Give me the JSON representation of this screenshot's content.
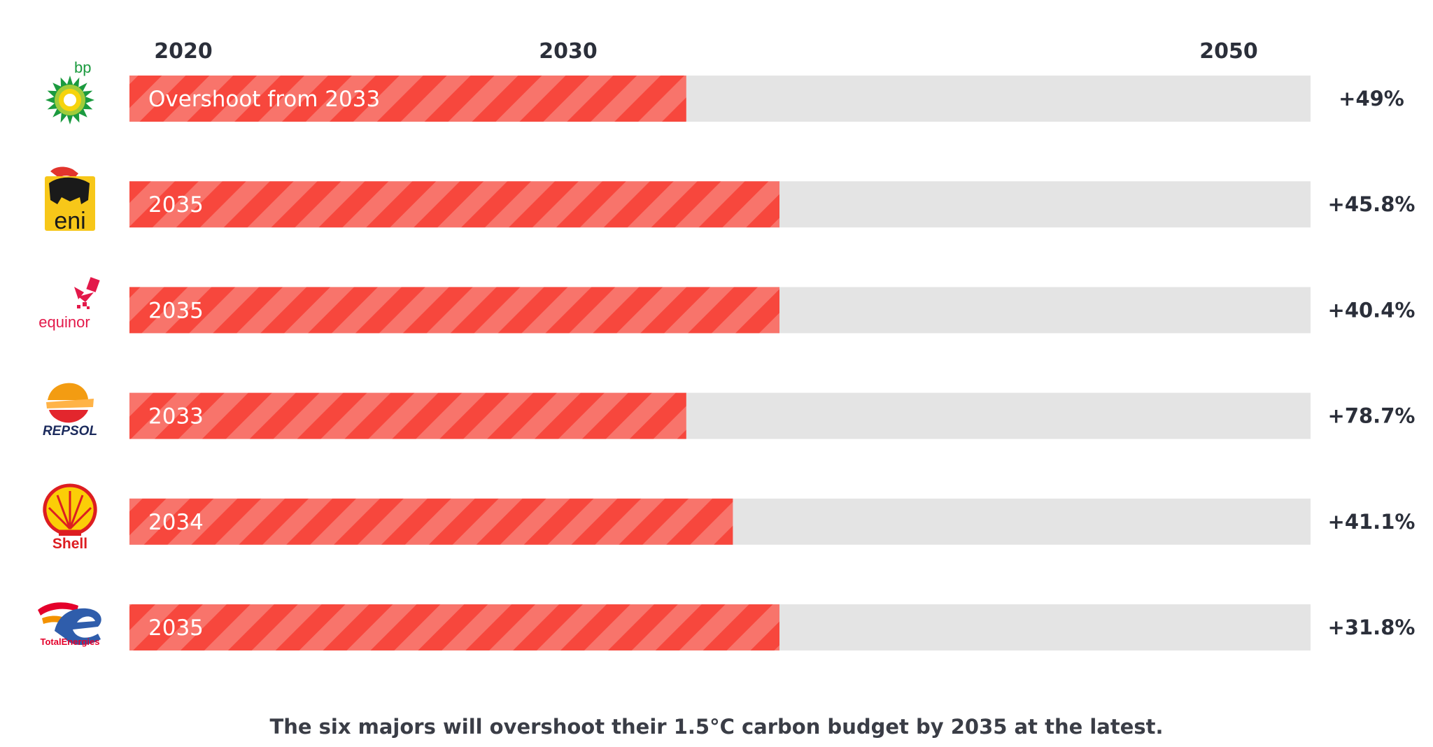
{
  "chart_data": {
    "type": "bar",
    "orientation": "horizontal",
    "axis": {
      "ticks": [
        "2020",
        "2030",
        "2050"
      ],
      "xlim": [
        2020,
        2050
      ]
    },
    "categories": [
      "bp",
      "eni",
      "equinor",
      "REPSOL",
      "Shell",
      "TotalEnergies"
    ],
    "values": [
      2033,
      2035,
      2035,
      2033,
      2034,
      2035
    ],
    "bar_labels": [
      "Overshoot from 2033",
      "2035",
      "2035",
      "2033",
      "2034",
      "2035"
    ],
    "overshoot_percent_labels": [
      "+49%",
      "+45.8%",
      "+40.4%",
      "+78.7%",
      "+41.1%",
      "+31.8%"
    ],
    "grid": false,
    "colors": {
      "bar": "#f7473d",
      "bar_stripe": "#f8746b",
      "track": "#e4e4e4",
      "text": "#2b2f3a"
    }
  },
  "caption": "The six majors will overshoot their 1.5°C carbon budget by 2035 at the latest."
}
